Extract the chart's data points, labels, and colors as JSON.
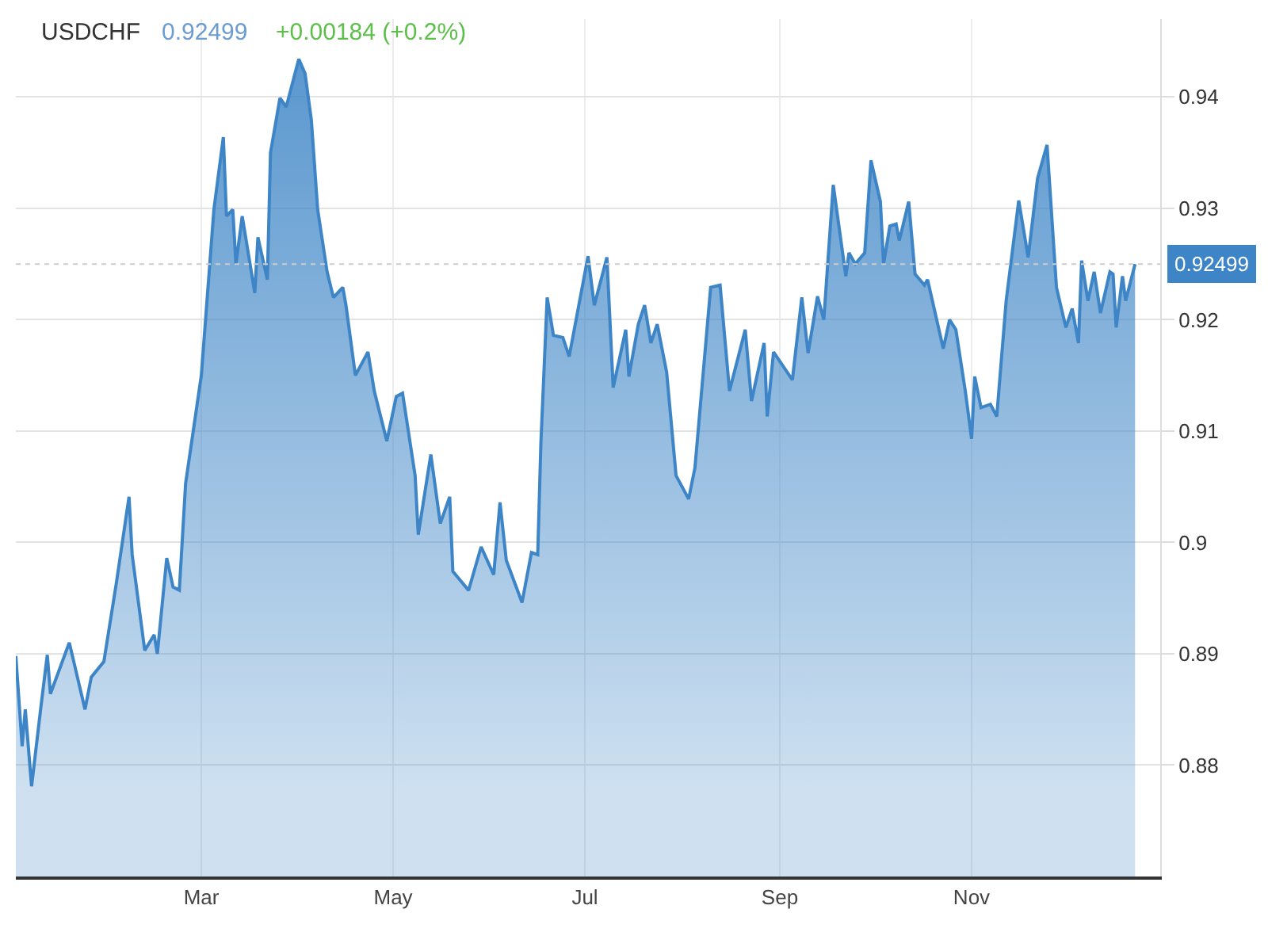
{
  "chart_data": {
    "type": "area",
    "title": "USDCHF",
    "subtitle": "0.92499",
    "annotations": [
      "+0.00184 (+0.2%)"
    ],
    "x": [
      "--01-01",
      "--01-03",
      "--01-04",
      "--01-06",
      "--01-09",
      "--01-11",
      "--01-12",
      "--01-18",
      "--01-23",
      "--01-25",
      "--01-29",
      "--02-02",
      "--02-06",
      "--02-07",
      "--02-11",
      "--02-14",
      "--02-15",
      "--02-18",
      "--02-20",
      "--02-22",
      "--02-24",
      "--03-01",
      "--03-05",
      "--03-08",
      "--03-09",
      "--03-11",
      "--03-12",
      "--03-14",
      "--03-18",
      "--03-19",
      "--03-22",
      "--03-23",
      "--03-26",
      "--03-28",
      "--04-01",
      "--04-03",
      "--04-05",
      "--04-07",
      "--04-10",
      "--04-12",
      "--04-15",
      "--04-16",
      "--04-19",
      "--04-23",
      "--04-25",
      "--04-29",
      "--05-02",
      "--05-04",
      "--05-08",
      "--05-09",
      "--05-13",
      "--05-16",
      "--05-19",
      "--05-20",
      "--05-25",
      "--05-29",
      "--06-02",
      "--06-04",
      "--06-06",
      "--06-11",
      "--06-14",
      "--06-16",
      "--06-17",
      "--06-19",
      "--06-21",
      "--06-24",
      "--06-26",
      "--07-02",
      "--07-04",
      "--07-08",
      "--07-10",
      "--07-14",
      "--07-15",
      "--07-18",
      "--07-20",
      "--07-22",
      "--07-24",
      "--07-27",
      "--07-30",
      "--08-03",
      "--08-05",
      "--08-10",
      "--08-13",
      "--08-16",
      "--08-21",
      "--08-23",
      "--08-27",
      "--08-28",
      "--08-30",
      "--09-05",
      "--09-08",
      "--09-10",
      "--09-13",
      "--09-15",
      "--09-18",
      "--09-22",
      "--09-23",
      "--09-25",
      "--09-28",
      "--09-30",
      "--10-03",
      "--10-04",
      "--10-06",
      "--10-08",
      "--10-09",
      "--10-12",
      "--10-14",
      "--10-17",
      "--10-18",
      "--10-23",
      "--10-25",
      "--10-27",
      "--10-30",
      "--11-01",
      "--11-02",
      "--11-04",
      "--11-07",
      "--11-09",
      "--11-12",
      "--11-16",
      "--11-19",
      "--11-22",
      "--11-25",
      "--11-28",
      "--12-01",
      "--12-03",
      "--12-05",
      "--12-06",
      "--12-08",
      "--12-10",
      "--12-12",
      "--12-15",
      "--12-16",
      "--12-17",
      "--12-19",
      "--12-20",
      "--12-23"
    ],
    "series": [
      {
        "color": "#3d85c6",
        "values": [
          0.8898,
          0.8817,
          0.885,
          0.8781,
          0.8853,
          0.8899,
          0.8864,
          0.891,
          0.885,
          0.8879,
          0.8893,
          0.8964,
          0.9041,
          0.8989,
          0.8903,
          0.8917,
          0.89,
          0.8986,
          0.896,
          0.8957,
          0.9053,
          0.915,
          0.9299,
          0.9364,
          0.9293,
          0.9299,
          0.925,
          0.9293,
          0.9224,
          0.9274,
          0.9236,
          0.935,
          0.9399,
          0.9391,
          0.9434,
          0.9421,
          0.9379,
          0.9299,
          0.9243,
          0.922,
          0.9229,
          0.9213,
          0.915,
          0.9171,
          0.9136,
          0.9091,
          0.9131,
          0.9134,
          0.906,
          0.9007,
          0.9079,
          0.9017,
          0.9041,
          0.8974,
          0.8957,
          0.8996,
          0.8971,
          0.9036,
          0.8984,
          0.8946,
          0.8991,
          0.8989,
          0.9089,
          0.922,
          0.9186,
          0.9184,
          0.9167,
          0.9257,
          0.9213,
          0.9256,
          0.9139,
          0.9191,
          0.9149,
          0.9196,
          0.9213,
          0.9179,
          0.9196,
          0.9153,
          0.906,
          0.9039,
          0.9067,
          0.9229,
          0.9231,
          0.9136,
          0.9191,
          0.9127,
          0.9179,
          0.9113,
          0.9171,
          0.9146,
          0.922,
          0.917,
          0.9221,
          0.92,
          0.9321,
          0.9239,
          0.926,
          0.925,
          0.926,
          0.9343,
          0.9306,
          0.925,
          0.9284,
          0.9286,
          0.9271,
          0.9306,
          0.9241,
          0.9231,
          0.9236,
          0.9174,
          0.92,
          0.9191,
          0.9136,
          0.9093,
          0.9149,
          0.9121,
          0.9124,
          0.9113,
          0.9217,
          0.9307,
          0.9256,
          0.9327,
          0.9357,
          0.9229,
          0.9193,
          0.921,
          0.9179,
          0.9253,
          0.9217,
          0.9243,
          0.9206,
          0.9243,
          0.9241,
          0.9193,
          0.9239,
          0.9217,
          0.925
        ]
      }
    ],
    "xlim": [
      "--01-01",
      "--12-31"
    ],
    "xticks": [
      {
        "value": "--03-01",
        "label": "Mar"
      },
      {
        "value": "--05-01",
        "label": "May"
      },
      {
        "value": "--07-01",
        "label": "Jul"
      },
      {
        "value": "--09-01",
        "label": "Sep"
      },
      {
        "value": "--11-01",
        "label": "Nov"
      }
    ],
    "ylim": [
      0.87,
      0.947
    ],
    "yticks": [
      0.88,
      0.89,
      0.9,
      0.91,
      0.92,
      0.93,
      0.94
    ],
    "ref_lines": [
      {
        "axis": "y",
        "value": 0.92499,
        "label": "0.92499"
      }
    ],
    "grid": true,
    "marker": "none",
    "line_style": "solid"
  }
}
